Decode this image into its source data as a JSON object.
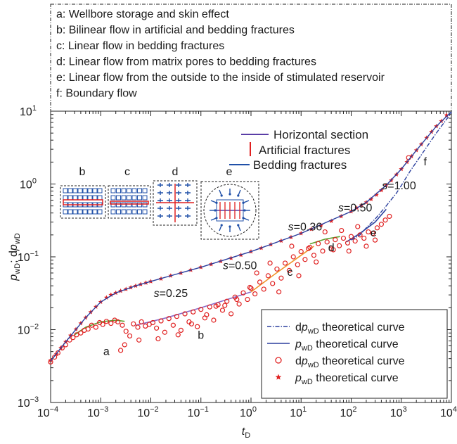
{
  "chart_data": {
    "type": "scatter",
    "title": "",
    "xlabel": "t",
    "xlabel_sub": "D",
    "ylabel_parts": [
      "p",
      "wD",
      "; d",
      "p",
      "wD"
    ],
    "x_scale": "log",
    "y_scale": "log",
    "xlim": [
      0.0001,
      10000
    ],
    "ylim": [
      0.001,
      10
    ],
    "x_ticks": [
      {
        "value": 0.0001,
        "base": "10",
        "exp": "−4"
      },
      {
        "value": 0.001,
        "base": "10",
        "exp": "−3"
      },
      {
        "value": 0.01,
        "base": "10",
        "exp": "−2"
      },
      {
        "value": 0.1,
        "base": "10",
        "exp": "−1"
      },
      {
        "value": 1,
        "base": "10",
        "exp": "0"
      },
      {
        "value": 10,
        "base": "10",
        "exp": "1"
      },
      {
        "value": 100,
        "base": "10",
        "exp": "2"
      },
      {
        "value": 1000,
        "base": "10",
        "exp": "3"
      },
      {
        "value": 10000,
        "base": "10",
        "exp": "4"
      }
    ],
    "y_ticks": [
      {
        "value": 0.001,
        "base": "10",
        "exp": "−3"
      },
      {
        "value": 0.01,
        "base": "10",
        "exp": "−2"
      },
      {
        "value": 0.1,
        "base": "10",
        "exp": "−1"
      },
      {
        "value": 1,
        "base": "10",
        "exp": "0"
      },
      {
        "value": 10,
        "base": "10",
        "exp": "1"
      }
    ],
    "flow_regimes": [
      "a: Wellbore storage and skin effect",
      "b: Bilinear flow in artificial and bedding fractures",
      "c: Linear flow in bedding fractures",
      "d: Linear flow from matrix pores to bedding fractures",
      "e: Linear flow from the outside to the inside of stimulated reservoir",
      "f: Boundary flow"
    ],
    "schematic_legend": [
      {
        "label": "Horizontal section",
        "color": "#5a3ea6"
      },
      {
        "label": "Artificial fractures",
        "color": "#e02020"
      },
      {
        "label": "Bedding fractures",
        "color": "#2050a8"
      }
    ],
    "schematic_labels": [
      "b",
      "c",
      "d",
      "e"
    ],
    "series_legend": [
      {
        "pre": "d",
        "p": "p",
        "sub": "wD",
        "post": " theoretical curve",
        "style": "dashdot",
        "color": "#2b3f9e"
      },
      {
        "pre": "",
        "p": "p",
        "sub": "wD",
        "post": " theoretical curve",
        "style": "line",
        "color": "#2b3f9e"
      },
      {
        "pre": "d",
        "p": "p",
        "sub": "wD",
        "post": " theoretical curve",
        "style": "circle",
        "color": "#e02020"
      },
      {
        "pre": "",
        "p": "p",
        "sub": "wD",
        "post": " theoretical curve",
        "style": "star",
        "color": "#e02020"
      }
    ],
    "regime_labels": [
      {
        "text": "a",
        "x": 0.0013,
        "y": 0.0045
      },
      {
        "text": "b",
        "x": 0.1,
        "y": 0.0075
      },
      {
        "text": "c",
        "x": 6,
        "y": 0.055
      },
      {
        "text": "d",
        "x": 40,
        "y": 0.12
      },
      {
        "text": "e",
        "x": 280,
        "y": 0.19
      },
      {
        "text": "f",
        "x": 3000,
        "y": 1.8
      }
    ],
    "slope_labels": [
      {
        "text": "0.25",
        "x": 0.025,
        "y": 0.028
      },
      {
        "text": "0.50",
        "x": 0.6,
        "y": 0.068
      },
      {
        "text": "0.36",
        "x": 12,
        "y": 0.23
      },
      {
        "text": "0.50",
        "x": 120,
        "y": 0.42
      },
      {
        "text": "1.00",
        "x": 900,
        "y": 0.85
      }
    ],
    "slope_prefix": "s=",
    "series": [
      {
        "name": "pwD",
        "kind": "star",
        "color": "#e02020",
        "x": [
          0.0001,
          0.00013,
          0.00016,
          0.0002,
          0.00025,
          0.00032,
          0.0004,
          0.0005,
          0.00063,
          0.0008,
          0.001,
          0.0013,
          0.0016,
          0.002,
          0.0025,
          0.0032,
          0.004,
          0.005,
          0.0063,
          0.008,
          0.01,
          0.016,
          0.025,
          0.04,
          0.063,
          0.1,
          0.16,
          0.25,
          0.4,
          0.63,
          1,
          1.6,
          2.5,
          4,
          6.3,
          10,
          16,
          25,
          40,
          63,
          100,
          130,
          160,
          200,
          250,
          320,
          400,
          500,
          630,
          800,
          1000,
          1300,
          1600,
          2000,
          2500,
          3200,
          4000,
          5000,
          6300,
          8000
        ],
        "y": [
          0.0038,
          0.0046,
          0.0056,
          0.0068,
          0.0083,
          0.0101,
          0.0122,
          0.0146,
          0.0174,
          0.0206,
          0.024,
          0.0275,
          0.03,
          0.032,
          0.034,
          0.036,
          0.038,
          0.04,
          0.042,
          0.044,
          0.046,
          0.05,
          0.055,
          0.06,
          0.066,
          0.072,
          0.079,
          0.087,
          0.096,
          0.106,
          0.118,
          0.132,
          0.148,
          0.166,
          0.186,
          0.21,
          0.24,
          0.27,
          0.31,
          0.36,
          0.42,
          0.47,
          0.51,
          0.56,
          0.62,
          0.71,
          0.82,
          0.96,
          1.12,
          1.35,
          1.6,
          2.0,
          2.4,
          2.9,
          3.5,
          4.3,
          5.2,
          6.2,
          7.3,
          8.8
        ]
      },
      {
        "name": "dpwD",
        "kind": "circle",
        "color": "#e02020",
        "x": [
          0.0001,
          0.00012,
          0.00014,
          0.00017,
          0.0002,
          0.00024,
          0.00028,
          0.00033,
          0.0004,
          0.00047,
          0.00056,
          0.00066,
          0.0008,
          0.00095,
          0.0011,
          0.0013,
          0.0016,
          0.0019,
          0.0022,
          0.0027,
          0.0032,
          0.0038,
          0.0045,
          0.0055,
          0.0065,
          0.0078,
          0.0093,
          0.011,
          0.013,
          0.016,
          0.019,
          0.023,
          0.028,
          0.033,
          0.04,
          0.048,
          0.058,
          0.07,
          0.085,
          0.1,
          0.12,
          0.15,
          0.18,
          0.22,
          0.27,
          0.33,
          0.4,
          0.48,
          0.58,
          0.7,
          0.85,
          1,
          1.2,
          1.5,
          1.8,
          2.2,
          2.7,
          3.3,
          4,
          4.8,
          5.8,
          7,
          8.5,
          10,
          12,
          15,
          18,
          22,
          27,
          33,
          40,
          48,
          58,
          70,
          85,
          100,
          120,
          150,
          180,
          220,
          270,
          330,
          400,
          480,
          580,
          0.0025,
          0.003,
          0.0058,
          0.014,
          0.035,
          0.065,
          0.13,
          0.2,
          0.3,
          0.52,
          0.95,
          1.3,
          2.4,
          3.6,
          6.5,
          9,
          14,
          20,
          30,
          44,
          64,
          90,
          135,
          200,
          300,
          1400
        ],
        "y": [
          0.0036,
          0.0042,
          0.0048,
          0.0056,
          0.0062,
          0.0072,
          0.0078,
          0.0085,
          0.009,
          0.0098,
          0.0102,
          0.0115,
          0.0108,
          0.0125,
          0.0118,
          0.013,
          0.0122,
          0.0135,
          0.0128,
          0.0115,
          0.0095,
          0.0082,
          0.012,
          0.0108,
          0.0128,
          0.0112,
          0.0118,
          0.0125,
          0.0105,
          0.0132,
          0.0092,
          0.0142,
          0.0115,
          0.0152,
          0.0098,
          0.0165,
          0.0128,
          0.0175,
          0.011,
          0.019,
          0.0145,
          0.0205,
          0.0135,
          0.022,
          0.0185,
          0.0245,
          0.0165,
          0.028,
          0.0225,
          0.032,
          0.026,
          0.037,
          0.031,
          0.045,
          0.036,
          0.055,
          0.043,
          0.068,
          0.051,
          0.082,
          0.065,
          0.1,
          0.078,
          0.118,
          0.092,
          0.135,
          0.105,
          0.152,
          0.12,
          0.16,
          0.128,
          0.172,
          0.142,
          0.18,
          0.155,
          0.19,
          0.165,
          0.2,
          0.18,
          0.22,
          0.21,
          0.25,
          0.28,
          0.32,
          0.36,
          0.0052,
          0.0062,
          0.0072,
          0.0075,
          0.0085,
          0.012,
          0.016,
          0.021,
          0.0215,
          0.026,
          0.038,
          0.06,
          0.082,
          0.033,
          0.14,
          0.055,
          0.13,
          0.085,
          0.22,
          0.125,
          0.23,
          0.12,
          0.26,
          0.14,
          0.17,
          2.3
        ]
      },
      {
        "name": "pwD-theory",
        "kind": "line",
        "color": "#2b3f9e",
        "x": [
          0.0001,
          0.0002,
          0.0005,
          0.001,
          0.002,
          0.005,
          0.01,
          0.1,
          1,
          10,
          100,
          200,
          500,
          1000,
          2000,
          5000,
          10000
        ],
        "y": [
          0.0037,
          0.0068,
          0.0146,
          0.024,
          0.032,
          0.04,
          0.046,
          0.072,
          0.118,
          0.21,
          0.42,
          0.56,
          0.96,
          1.6,
          2.9,
          6.2,
          9.8
        ]
      },
      {
        "name": "dpwD-theory",
        "kind": "dashdot",
        "color": "#2b3f9e",
        "x": [
          100,
          150,
          200,
          300,
          500,
          800,
          1000,
          1500,
          2000,
          3000,
          5000,
          10000
        ],
        "y": [
          0.17,
          0.2,
          0.25,
          0.33,
          0.5,
          0.75,
          0.95,
          1.5,
          2.0,
          3.0,
          5.0,
          9.5
        ]
      },
      {
        "name": "fit-a",
        "kind": "segment",
        "color": "#5aa02c",
        "x": [
          0.0003,
          0.0005,
          0.001,
          0.002,
          0.003
        ],
        "y": [
          0.0085,
          0.0108,
          0.0128,
          0.0135,
          0.013
        ]
      },
      {
        "name": "fit-b",
        "kind": "segment",
        "color": "#8a6cc8",
        "x": [
          0.005,
          0.02,
          0.1,
          0.4,
          1
        ],
        "y": [
          0.0115,
          0.0145,
          0.02,
          0.027,
          0.033
        ]
      },
      {
        "name": "fit-c",
        "kind": "segment",
        "color": "#f0932b",
        "x": [
          1,
          3,
          10,
          18
        ],
        "y": [
          0.033,
          0.058,
          0.105,
          0.14
        ]
      },
      {
        "name": "fit-d",
        "kind": "segment",
        "color": "#5aa02c",
        "x": [
          15,
          30,
          60
        ],
        "y": [
          0.15,
          0.175,
          0.19
        ]
      },
      {
        "name": "fit-e",
        "kind": "segment",
        "color": "#2b3f9e",
        "x": [
          80,
          150,
          300,
          500
        ],
        "y": [
          0.16,
          0.21,
          0.3,
          0.45
        ]
      }
    ]
  }
}
